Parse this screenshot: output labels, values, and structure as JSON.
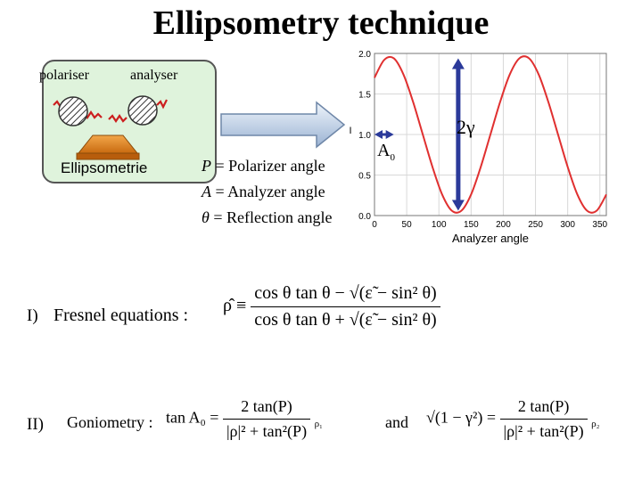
{
  "title": "Ellipsometry technique",
  "setup": {
    "polariser_label": "polariser",
    "analyser_label": "analyser",
    "ellipsometrie_label": "Ellipsometrie"
  },
  "definitions": {
    "p_sym": "P",
    "p_text": " = Polarizer angle",
    "a_sym": "A",
    "a_text": " = Analyzer angle",
    "theta_sym": "θ",
    "theta_text": " = Reflection angle"
  },
  "graph": {
    "x_label": "Analyzer angle",
    "y_label": "I",
    "x_ticks": [
      "0",
      "50",
      "100",
      "150",
      "200",
      "250",
      "300",
      "350"
    ],
    "y_ticks": [
      "0.0",
      "0.5",
      "1.0",
      "1.5",
      "2.0"
    ],
    "annotation_gamma": "2γ",
    "annotation_a0": "A",
    "annotation_a0_sub": "0",
    "curve_color": "#e03030",
    "arrow_color": "#2b3a9a"
  },
  "chart_data": {
    "type": "line",
    "xlabel": "Analyzer angle",
    "ylabel": "I",
    "xlim": [
      0,
      360
    ],
    "ylim": [
      0,
      2.0
    ],
    "x_ticks": [
      0,
      50,
      100,
      150,
      200,
      250,
      300,
      350
    ],
    "y_ticks": [
      0.0,
      0.5,
      1.0,
      1.5,
      2.0
    ],
    "series": [
      {
        "x": [
          0,
          15,
          30,
          45,
          60,
          75,
          90,
          105,
          120,
          135,
          150,
          165,
          180,
          195,
          210,
          225,
          240,
          255,
          270,
          285,
          300,
          315,
          330,
          345,
          360
        ],
        "y": [
          1.7,
          1.92,
          1.94,
          1.74,
          1.4,
          1.0,
          0.6,
          0.26,
          0.06,
          0.06,
          0.26,
          0.6,
          1.0,
          1.4,
          1.74,
          1.94,
          1.94,
          1.74,
          1.4,
          1.0,
          0.6,
          0.26,
          0.06,
          0.06,
          0.26
        ]
      }
    ],
    "grid": true
  },
  "equations": {
    "eq1_number": "I)",
    "eq1_label": "Fresnel equations :",
    "eq1_lhs": "ρ̂ ≡",
    "eq1_num": "cos θ tan θ − √(ε̃ − sin² θ)",
    "eq1_den": "cos θ tan θ + √(ε̃ − sin² θ)",
    "eq2_number": "II)",
    "eq2_label": "Goniometry :",
    "eq2_lhs": "tan A₀ =",
    "eq2_num": "2 tan(P)",
    "eq2_den": "|ρ|² + tan²(P)",
    "eq2_rho": "ρ₁",
    "eq2_and": "and",
    "eq3_lhs": "√(1 − γ²) =",
    "eq3_num": "2 tan(P)",
    "eq3_den": "|ρ|² + tan²(P)",
    "eq3_rho": "ρ₂"
  }
}
